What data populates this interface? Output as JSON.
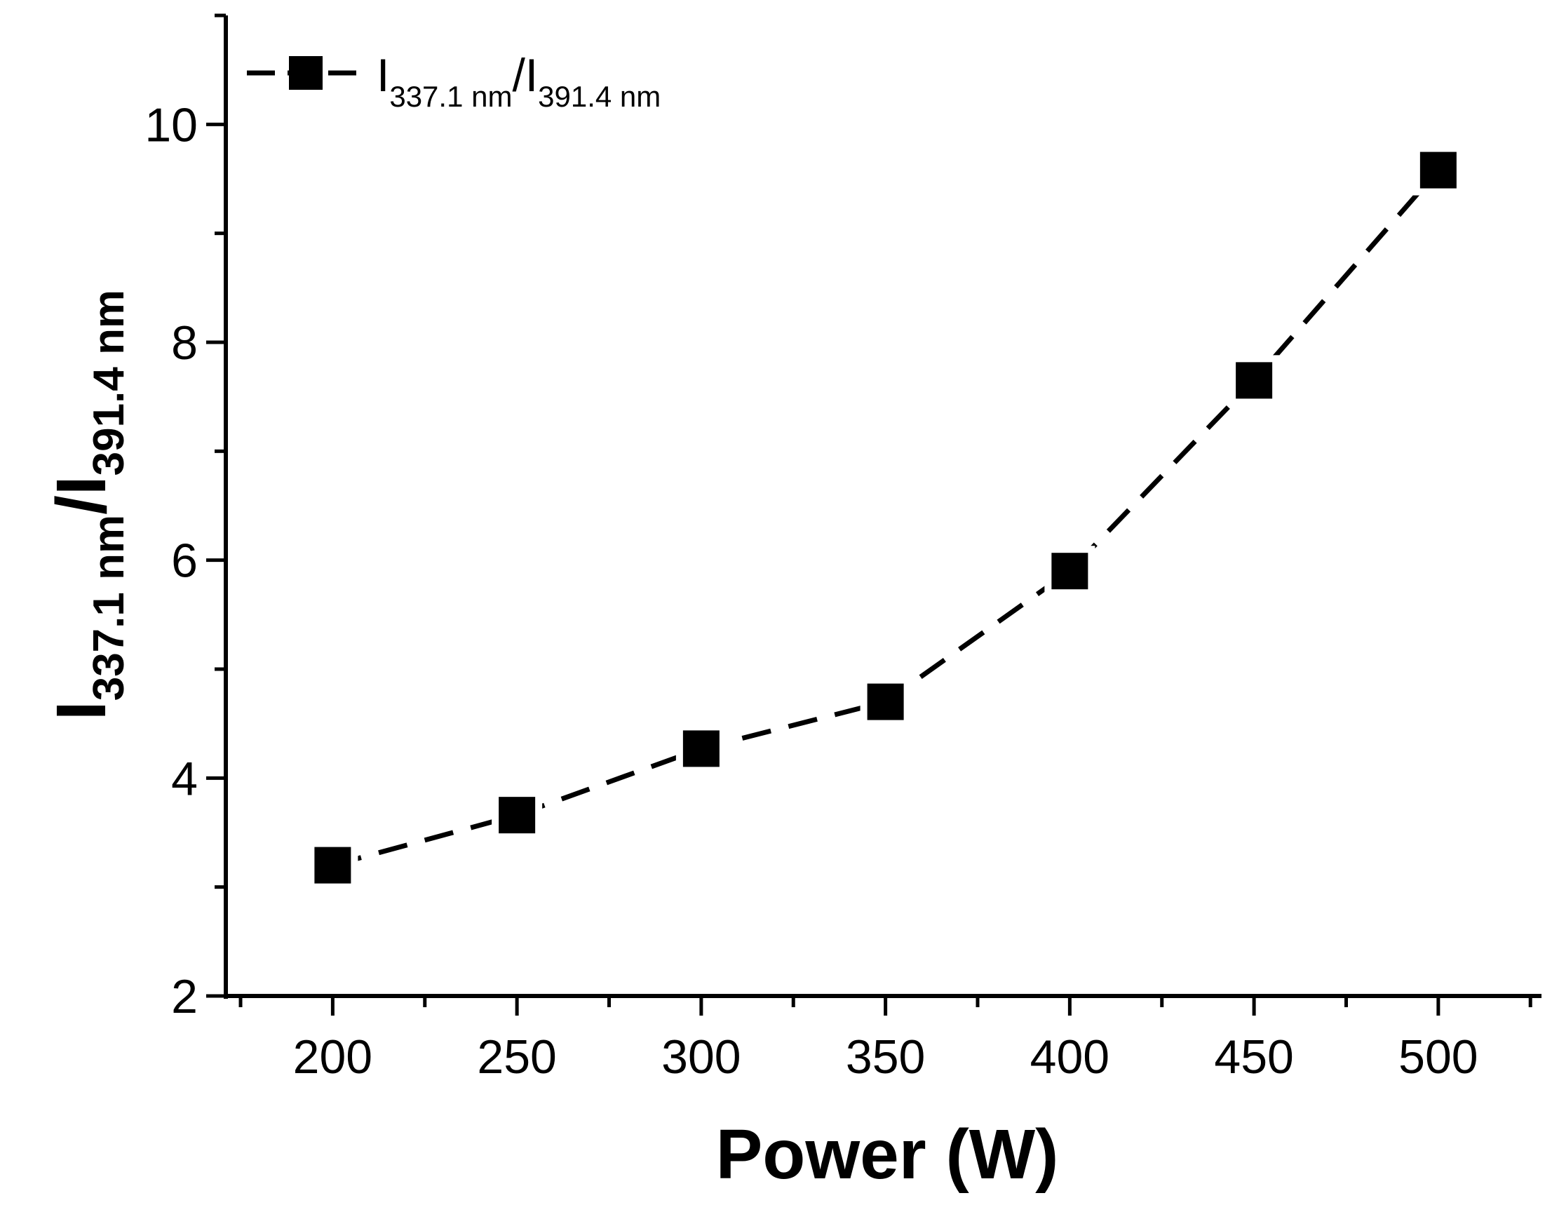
{
  "chart_data": {
    "type": "line",
    "title": "",
    "xlabel": "Power (W)",
    "ylabel": {
      "base": "I",
      "sub1": "337.1 nm",
      "slash": "/I",
      "sub2": "391.4 nm"
    },
    "xlim": [
      171,
      528
    ],
    "ylim": [
      2,
      11
    ],
    "xticks": [
      200,
      250,
      300,
      350,
      400,
      450,
      500
    ],
    "yticks": [
      2,
      4,
      6,
      8,
      10
    ],
    "grid": false,
    "legend_position": "top-left",
    "series": [
      {
        "name": "I337.1 nm/I391.4 nm",
        "legend": {
          "base": "I",
          "sub1": "337.1 nm",
          "slash": "/I",
          "sub2": "391.4 nm"
        },
        "marker": "square",
        "line_style": "dashed",
        "color": "#000000",
        "x": [
          200,
          250,
          300,
          350,
          400,
          450,
          500
        ],
        "y": [
          3.2,
          3.66,
          4.27,
          4.7,
          5.9,
          7.65,
          9.58
        ]
      }
    ]
  }
}
